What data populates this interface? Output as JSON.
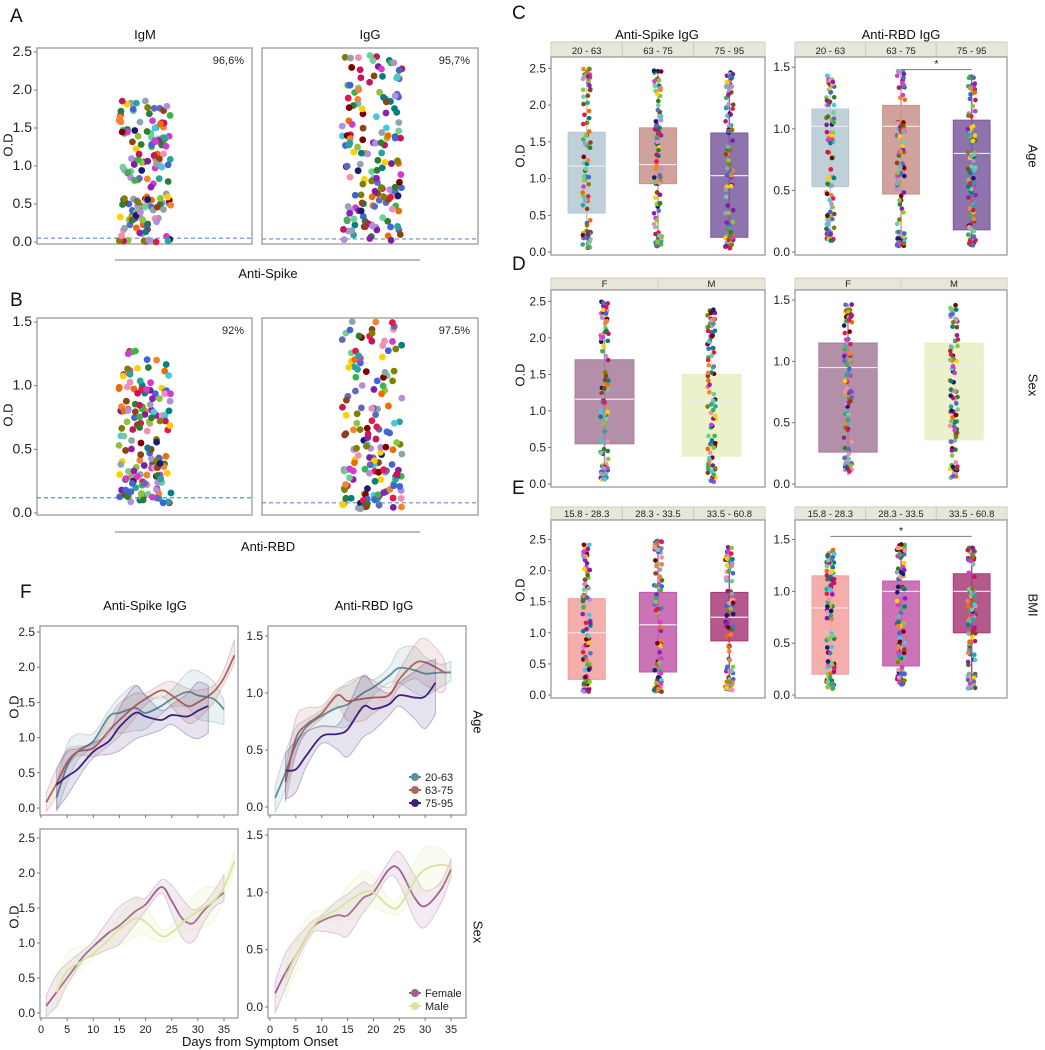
{
  "panels": {
    "A": "A",
    "B": "B",
    "C": "C",
    "D": "D",
    "E": "E",
    "F": "F"
  },
  "groups": {
    "spike": "Anti-Spike",
    "rbd": "Anti-RBD"
  },
  "facets": {
    "age": "Age",
    "sex": "Sex",
    "bmi": "BMI"
  },
  "ylabel": "O.D",
  "dot_palette": [
    "#e6194b",
    "#3cb44b",
    "#ffd000",
    "#4363d8",
    "#f58231",
    "#911eb4",
    "#46c8e0",
    "#d23cce",
    "#8fc43a",
    "#f08fb0",
    "#008080",
    "#b48ede",
    "#8b4513",
    "#800000",
    "#6fcf97",
    "#808000",
    "#1a1a6e",
    "#2e7d32",
    "#c2185b",
    "#5c6bc0",
    "#26a69a",
    "#7b1fa2",
    "#ef6c00",
    "#90a4ae"
  ],
  "colors": {
    "frame": "#9a9a9a",
    "strip": "#e8e6d8",
    "cutoff": "#5b8fd6",
    "sig": "#777777"
  },
  "chart_data": [
    {
      "type": "scatter",
      "title": "IgM",
      "group": "Anti-Spike",
      "ylabel": "O.D",
      "ylim": [
        0,
        2.5
      ],
      "yticks": [
        0,
        0.5,
        1,
        1.5,
        2,
        2.5
      ],
      "ytick_labels": [
        "0.0",
        "0.5",
        "1.0",
        "1.5",
        "2.0",
        "2.5"
      ],
      "annotation": "96,6%",
      "cutoff": 0.05,
      "value_range": [
        0,
        1.9
      ]
    },
    {
      "type": "scatter",
      "title": "IgG",
      "group": "Anti-Spike",
      "ylim": [
        0,
        2.5
      ],
      "annotation": "95,7%",
      "cutoff": 0.04,
      "value_range": [
        0.02,
        2.47
      ]
    },
    {
      "type": "scatter",
      "title": "",
      "group": "Anti-RBD",
      "ylabel": "O.D",
      "ylim": [
        0,
        1.5
      ],
      "yticks": [
        0,
        0.5,
        1,
        1.5
      ],
      "ytick_labels": [
        "0.0",
        "0.5",
        "1.0",
        "1.5"
      ],
      "annotation": "92%",
      "cutoff": 0.12,
      "value_range": [
        0.07,
        1.28
      ]
    },
    {
      "type": "scatter",
      "title": "",
      "group": "Anti-RBD",
      "ylim": [
        0,
        1.5
      ],
      "annotation": "97.5%",
      "cutoff": 0.08,
      "value_range": [
        0.03,
        1.52
      ]
    },
    {
      "type": "box",
      "title": "Anti-Spike IgG",
      "facet": "Age",
      "ylabel": "O.D",
      "ylim": [
        0,
        2.6
      ],
      "yticks": [
        0,
        0.5,
        1,
        1.5,
        2,
        2.5
      ],
      "ytick_labels": [
        "0.0",
        "0.5",
        "1.0",
        "1.5",
        "2.0",
        "2.5"
      ],
      "categories": [
        "20 - 63",
        "63 - 75",
        "75 - 95"
      ],
      "colors": [
        "#b5c8d2",
        "#c8928c",
        "#7a5a9e"
      ],
      "stats": [
        {
          "min": 0.05,
          "q1": 0.53,
          "median": 1.17,
          "q3": 1.63,
          "max": 2.5
        },
        {
          "min": 0.05,
          "q1": 0.93,
          "median": 1.19,
          "q3": 1.69,
          "max": 2.47
        },
        {
          "min": 0.05,
          "q1": 0.2,
          "median": 1.04,
          "q3": 1.62,
          "max": 2.45
        }
      ],
      "significance": []
    },
    {
      "type": "box",
      "title": "Anti-RBD IgG",
      "facet": "Age",
      "ylim": [
        0,
        1.55
      ],
      "yticks": [
        0,
        0.5,
        1,
        1.5
      ],
      "ytick_labels": [
        "0.0",
        "0.5",
        "1.0",
        "1.5"
      ],
      "categories": [
        "20 - 63",
        "63 - 75",
        "75 - 95"
      ],
      "colors": [
        "#b5c8d2",
        "#c8928c",
        "#7a5a9e"
      ],
      "stats": [
        {
          "min": 0.07,
          "q1": 0.53,
          "median": 1.02,
          "q3": 1.16,
          "max": 1.44
        },
        {
          "min": 0.04,
          "q1": 0.47,
          "median": 1.02,
          "q3": 1.19,
          "max": 1.48
        },
        {
          "min": 0.05,
          "q1": 0.18,
          "median": 0.8,
          "q3": 1.07,
          "max": 1.43
        }
      ],
      "significance": [
        {
          "from": 1,
          "to": 2,
          "y": 1.48,
          "label": "*"
        }
      ]
    },
    {
      "type": "box",
      "title": "",
      "facet": "Sex",
      "ylabel": "O.D",
      "ylim": [
        0,
        2.6
      ],
      "yticks": [
        0,
        0.5,
        1,
        1.5,
        2,
        2.5
      ],
      "ytick_labels": [
        "0.0",
        "0.5",
        "1.0",
        "1.5",
        "2.0",
        "2.5"
      ],
      "categories": [
        "F",
        "M"
      ],
      "colors": [
        "#a67b9a",
        "#e8efc2"
      ],
      "stats": [
        {
          "min": 0.05,
          "q1": 0.55,
          "median": 1.16,
          "q3": 1.7,
          "max": 2.5
        },
        {
          "min": 0.03,
          "q1": 0.38,
          "median": 1.14,
          "q3": 1.5,
          "max": 2.42
        }
      ],
      "significance": []
    },
    {
      "type": "box",
      "title": "",
      "facet": "Sex",
      "ylim": [
        0,
        1.55
      ],
      "yticks": [
        0,
        0.5,
        1,
        1.5
      ],
      "ytick_labels": [
        "0.0",
        "0.5",
        "1.0",
        "1.5"
      ],
      "categories": [
        "F",
        "M"
      ],
      "colors": [
        "#a67b9a",
        "#e8efc2"
      ],
      "stats": [
        {
          "min": 0.07,
          "q1": 0.26,
          "median": 0.95,
          "q3": 1.15,
          "max": 1.47
        },
        {
          "min": 0.05,
          "q1": 0.36,
          "median": 0.96,
          "q3": 1.15,
          "max": 1.47
        }
      ],
      "significance": []
    },
    {
      "type": "box",
      "title": "",
      "facet": "BMI",
      "ylabel": "O.D",
      "ylim": [
        0,
        2.75
      ],
      "yticks": [
        0,
        0.5,
        1,
        1.5,
        2,
        2.5
      ],
      "ytick_labels": [
        "0.0",
        "0.5",
        "1.0",
        "1.5",
        "2.0",
        "2.5"
      ],
      "categories": [
        "15.8 - 28.3",
        "28.3 - 33.5",
        "33.5 - 60.8"
      ],
      "colors": [
        "#f2a19d",
        "#c25aa9",
        "#a83c78"
      ],
      "stats": [
        {
          "min": 0.05,
          "q1": 0.25,
          "median": 1.0,
          "q3": 1.55,
          "max": 2.44
        },
        {
          "min": 0.05,
          "q1": 0.37,
          "median": 1.13,
          "q3": 1.65,
          "max": 2.52
        },
        {
          "min": 0.05,
          "q1": 0.87,
          "median": 1.25,
          "q3": 1.65,
          "max": 2.38
        }
      ],
      "significance": []
    },
    {
      "type": "box",
      "title": "",
      "facet": "BMI",
      "ylim": [
        0,
        1.65
      ],
      "yticks": [
        0,
        0.5,
        1,
        1.5
      ],
      "ytick_labels": [
        "0.0",
        "0.5",
        "1.0",
        "1.5"
      ],
      "categories": [
        "15.8 - 28.3",
        "28.3 - 33.5",
        "33.5 - 60.8"
      ],
      "colors": [
        "#f2a19d",
        "#c25aa9",
        "#a83c78"
      ],
      "stats": [
        {
          "min": 0.05,
          "q1": 0.2,
          "median": 0.84,
          "q3": 1.15,
          "max": 1.4
        },
        {
          "min": 0.1,
          "q1": 0.28,
          "median": 1.0,
          "q3": 1.1,
          "max": 1.47
        },
        {
          "min": 0.05,
          "q1": 0.6,
          "median": 1.0,
          "q3": 1.17,
          "max": 1.43
        }
      ],
      "significance": [
        {
          "from": 0,
          "to": 2,
          "y": 1.53,
          "label": "*"
        }
      ]
    },
    {
      "type": "line",
      "title": "Anti-Spike IgG",
      "facet": "Age",
      "ylabel": "O.D",
      "xlabel": "",
      "ylim": [
        0,
        2.5
      ],
      "xlim": [
        0,
        37
      ],
      "yticks": [
        0,
        0.5,
        1,
        1.5,
        2,
        2.5
      ],
      "ytick_labels": [
        "0.0",
        "0.5",
        "1.0",
        "1.5",
        "2.0",
        "2.5"
      ],
      "series": [
        {
          "name": "20-63",
          "color": "#5b8f9c",
          "band": 0.3,
          "x": [
            3,
            5,
            7,
            10,
            13,
            15,
            18,
            20,
            23,
            25,
            28,
            30,
            33,
            35
          ],
          "y": [
            0.15,
            0.6,
            0.8,
            0.95,
            1.3,
            1.35,
            1.42,
            1.35,
            1.45,
            1.55,
            1.65,
            1.6,
            1.55,
            1.4
          ]
        },
        {
          "name": "63-75",
          "color": "#b0645e",
          "band": 0.22,
          "x": [
            1,
            3,
            5,
            7,
            10,
            13,
            15,
            18,
            20,
            23,
            25,
            28,
            30,
            33,
            35,
            37
          ],
          "y": [
            0.08,
            0.35,
            0.65,
            0.8,
            0.85,
            1.1,
            1.25,
            1.45,
            1.55,
            1.67,
            1.6,
            1.45,
            1.5,
            1.65,
            1.85,
            2.17
          ]
        },
        {
          "name": "75-95",
          "color": "#3f1f7a",
          "band": 0.35,
          "x": [
            3,
            5,
            7,
            10,
            13,
            15,
            18,
            20,
            23,
            25,
            28,
            30,
            32
          ],
          "y": [
            0.33,
            0.45,
            0.55,
            0.8,
            0.95,
            1.15,
            1.35,
            1.3,
            1.25,
            1.32,
            1.3,
            1.38,
            1.45
          ]
        }
      ]
    },
    {
      "type": "line",
      "title": "Anti-RBD IgG",
      "facet": "Age",
      "ylim": [
        0,
        1.55
      ],
      "xlim": [
        0,
        37
      ],
      "yticks": [
        0,
        0.5,
        1,
        1.5
      ],
      "ytick_labels": [
        "0.0",
        "0.5",
        "1.0",
        "1.5"
      ],
      "legend": "bottom-right",
      "series": [
        {
          "name": "20-63",
          "color": "#5b8f9c",
          "band": 0.18,
          "x": [
            1,
            3,
            5,
            7,
            10,
            13,
            15,
            18,
            20,
            23,
            25,
            28,
            30,
            33,
            35
          ],
          "y": [
            0.08,
            0.3,
            0.55,
            0.7,
            0.8,
            0.87,
            0.9,
            1.0,
            1.05,
            1.15,
            1.22,
            1.2,
            1.17,
            1.18,
            1.18
          ]
        },
        {
          "name": "63-75",
          "color": "#b0645e",
          "band": 0.18,
          "x": [
            3,
            5,
            7,
            10,
            13,
            15,
            18,
            20,
            23,
            25,
            28,
            30,
            33,
            34
          ],
          "y": [
            0.22,
            0.6,
            0.72,
            0.82,
            0.98,
            0.93,
            0.95,
            0.96,
            0.98,
            1.12,
            1.26,
            1.27,
            1.2,
            1.17
          ]
        },
        {
          "name": "75-95",
          "color": "#3f1f7a",
          "band": 0.25,
          "x": [
            3,
            5,
            7,
            10,
            13,
            15,
            18,
            20,
            23,
            25,
            28,
            30,
            32
          ],
          "y": [
            0.32,
            0.33,
            0.45,
            0.62,
            0.64,
            0.68,
            0.88,
            0.86,
            0.9,
            0.98,
            0.96,
            0.97,
            1.09
          ]
        }
      ]
    },
    {
      "type": "line",
      "title": "",
      "facet": "Sex",
      "ylabel": "O.D",
      "ylim": [
        0,
        2.5
      ],
      "xlim": [
        0,
        37
      ],
      "yticks": [
        0,
        0.5,
        1,
        1.5,
        2,
        2.5
      ],
      "ytick_labels": [
        "0.0",
        "0.5",
        "1.0",
        "1.5",
        "2.0",
        "2.5"
      ],
      "xticks": [
        0,
        5,
        10,
        15,
        20,
        25,
        30,
        35
      ],
      "series": [
        {
          "name": "Female",
          "color": "#a0618f",
          "band": 0.25,
          "x": [
            1,
            3,
            5,
            8,
            10,
            13,
            15,
            18,
            20,
            23,
            25,
            27,
            29,
            31,
            33,
            35
          ],
          "y": [
            0.1,
            0.3,
            0.5,
            0.8,
            0.95,
            1.15,
            1.25,
            1.45,
            1.55,
            1.8,
            1.6,
            1.35,
            1.28,
            1.45,
            1.6,
            1.72
          ]
        },
        {
          "name": "Male",
          "color": "#d9e49a",
          "band": 0.25,
          "x": [
            3,
            5,
            8,
            10,
            13,
            15,
            18,
            20,
            23,
            25,
            28,
            31,
            33,
            35,
            37
          ],
          "y": [
            0.3,
            0.6,
            0.75,
            0.85,
            1.05,
            1.2,
            1.35,
            1.3,
            1.1,
            1.15,
            1.35,
            1.5,
            1.6,
            1.8,
            2.17
          ]
        }
      ]
    },
    {
      "type": "line",
      "title": "",
      "facet": "Sex",
      "ylim": [
        0,
        1.55
      ],
      "xlim": [
        0,
        37
      ],
      "yticks": [
        0,
        0.5,
        1,
        1.5
      ],
      "ytick_labels": [
        "0.0",
        "0.5",
        "1.0",
        "1.5"
      ],
      "xticks": [
        0,
        5,
        10,
        15,
        20,
        25,
        30,
        35
      ],
      "legend": "bottom-right",
      "series": [
        {
          "name": "Female",
          "color": "#a0618f",
          "band": 0.17,
          "x": [
            1,
            3,
            5,
            8,
            10,
            13,
            15,
            18,
            20,
            23,
            25,
            28,
            30,
            33,
            35
          ],
          "y": [
            0.12,
            0.3,
            0.45,
            0.68,
            0.75,
            0.8,
            0.8,
            0.95,
            1.0,
            1.2,
            1.2,
            0.95,
            0.88,
            1.02,
            1.2
          ]
        },
        {
          "name": "Male",
          "color": "#d9e49a",
          "band": 0.17,
          "x": [
            3,
            5,
            8,
            10,
            13,
            15,
            18,
            20,
            23,
            25,
            28,
            30,
            33,
            35
          ],
          "y": [
            0.25,
            0.45,
            0.68,
            0.78,
            0.85,
            0.92,
            1.0,
            1.0,
            0.88,
            0.88,
            1.1,
            1.2,
            1.24,
            1.22
          ]
        }
      ]
    }
  ],
  "xlabel_f": "Days from Symptom Onset"
}
